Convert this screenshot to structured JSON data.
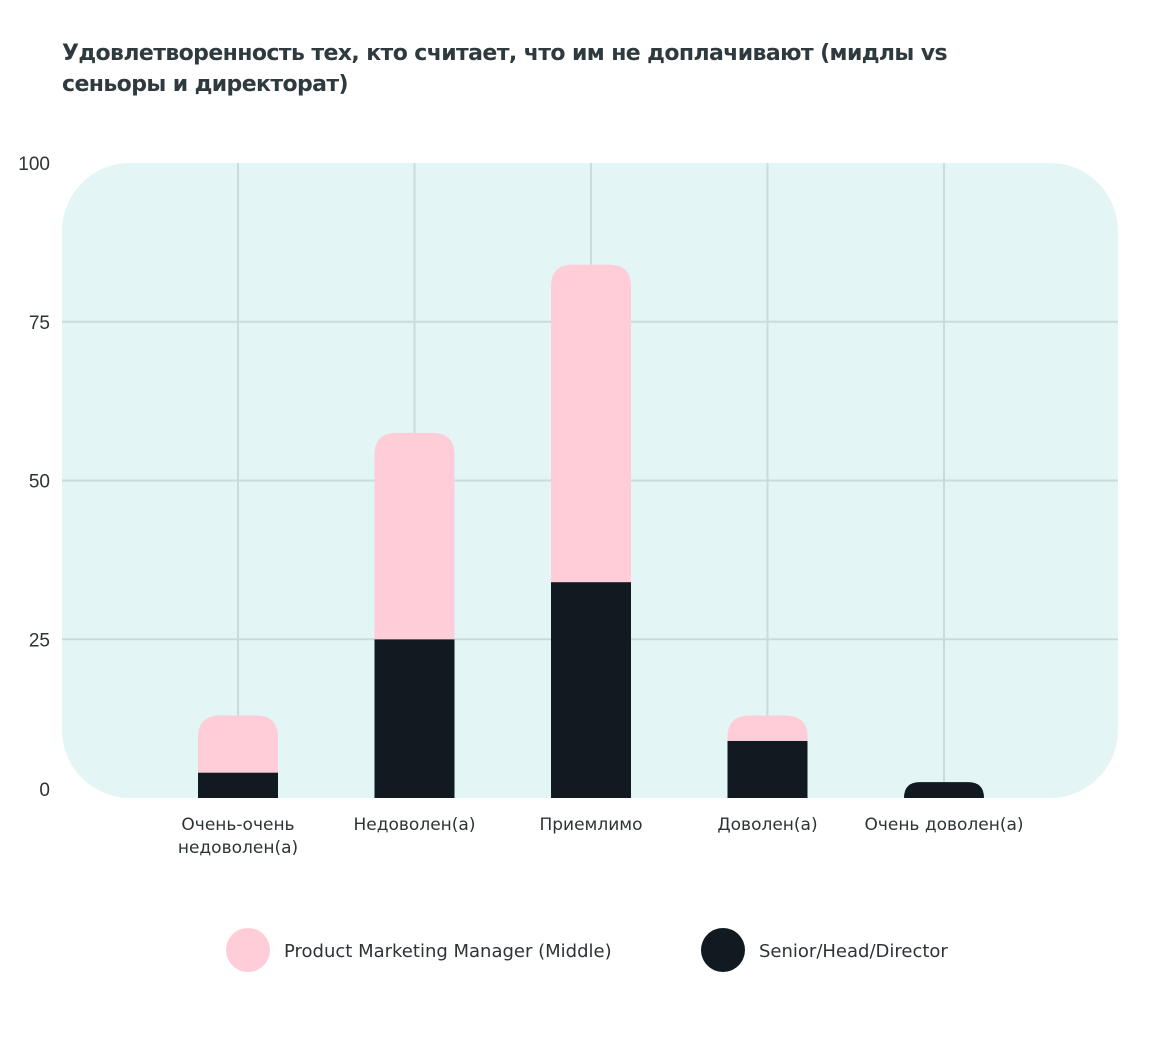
{
  "chart_data": {
    "type": "bar",
    "stacked": true,
    "title": "Удовлетворенность тех, кто считает, что им не доплачивают (мидлы vs сеньоры и директорат)",
    "categories": [
      [
        "Очень-очень",
        "недоволен(а)"
      ],
      [
        "Недоволен(а)"
      ],
      [
        "Приемлимо"
      ],
      [
        "Доволен(а)"
      ],
      [
        "Очень доволен(а)"
      ]
    ],
    "series": [
      {
        "name": "Senior/Head/Director",
        "color": "#111a20",
        "values": [
          4,
          25,
          34,
          9,
          2.5
        ]
      },
      {
        "name": "Product Marketing Manager (Middle)",
        "color": "#fecdd7",
        "values": [
          9,
          32.5,
          50,
          4,
          0
        ]
      }
    ],
    "legend": [
      {
        "name": "Product Marketing Manager (Middle)",
        "color": "#fecdd7"
      },
      {
        "name": "Senior/Head/Director",
        "color": "#111a20"
      }
    ],
    "ylim": [
      0,
      100
    ],
    "yticks": [
      "0",
      "25",
      "50",
      "75",
      "100"
    ],
    "grid": true,
    "legend_position": "bottom",
    "background_color": "#e3f5f5",
    "grid_color": "#c9dcdb"
  }
}
